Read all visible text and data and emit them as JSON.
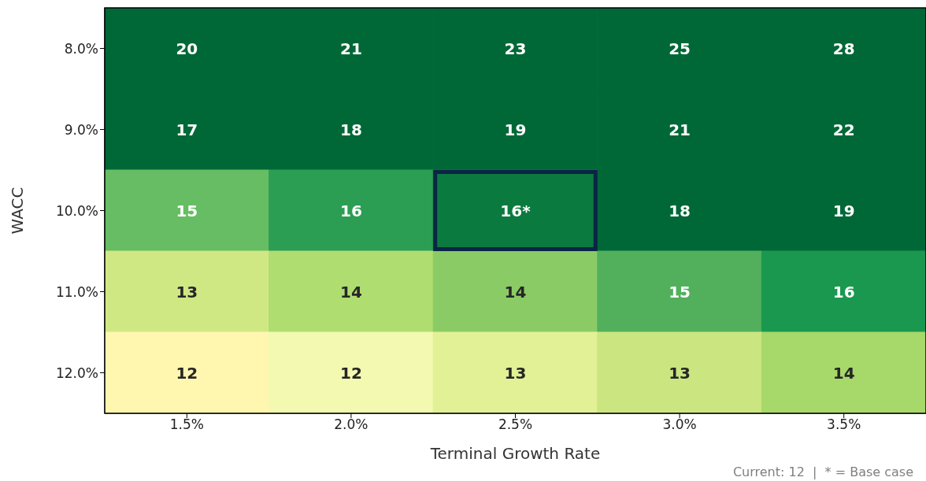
{
  "chart_data": {
    "type": "heatmap",
    "xlabel": "Terminal Growth Rate",
    "ylabel": "WACC",
    "categories": [
      "1.5%",
      "2.0%",
      "2.5%",
      "3.0%",
      "3.5%"
    ],
    "y_categories": [
      "8.0%",
      "9.0%",
      "10.0%",
      "11.0%",
      "12.0%"
    ],
    "cells": [
      [
        20,
        21,
        23,
        25,
        28
      ],
      [
        17,
        18,
        19,
        21,
        22
      ],
      [
        15,
        16,
        16,
        18,
        19
      ],
      [
        13,
        14,
        14,
        15,
        16
      ],
      [
        12,
        12,
        13,
        13,
        14
      ]
    ],
    "cell_labels": [
      [
        "20",
        "21",
        "23",
        "25",
        "28"
      ],
      [
        "17",
        "18",
        "19",
        "21",
        "22"
      ],
      [
        "15",
        "16",
        "16*",
        "18",
        "19"
      ],
      [
        "13",
        "14",
        "14",
        "15",
        "16"
      ],
      [
        "12",
        "12",
        "13",
        "13",
        "14"
      ]
    ],
    "colors": [
      [
        "#006837",
        "#006837",
        "#006837",
        "#006837",
        "#006837"
      ],
      [
        "#006837",
        "#006837",
        "#006837",
        "#006837",
        "#006837"
      ],
      [
        "#66bd63",
        "#2c9e54",
        "#0b7a3e",
        "#006837",
        "#006837"
      ],
      [
        "#d0e884",
        "#b0dd70",
        "#8bcb66",
        "#52b05d",
        "#1a9850"
      ],
      [
        "#fff6b0",
        "#f3f9b0",
        "#e2f096",
        "#cbe681",
        "#a6d96a"
      ]
    ],
    "annotations": [
      "Current: 12  |  * = Base case"
    ]
  }
}
